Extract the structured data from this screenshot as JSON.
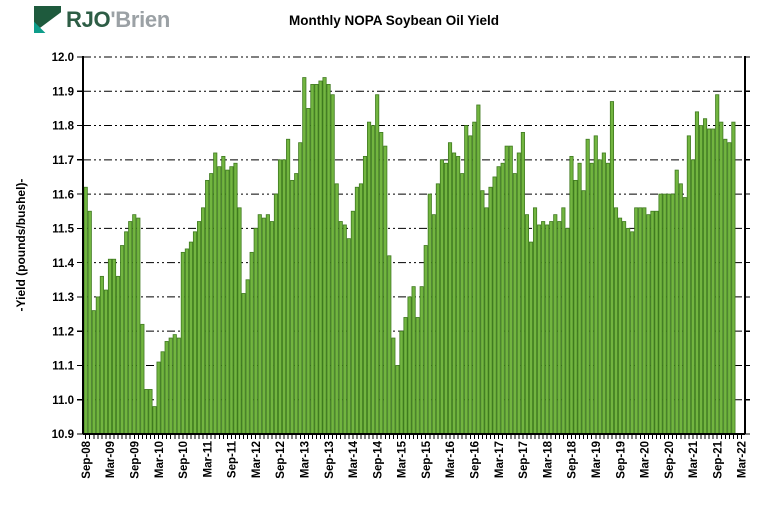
{
  "logo": {
    "text_primary": "RJO",
    "text_secondary": "'Brien",
    "mark_colors": {
      "green": "#1e5a3d",
      "teal": "#0e9d8a"
    }
  },
  "title": "Monthly NOPA Soybean Oil Yield",
  "chart_data": {
    "type": "bar",
    "title": "Monthly NOPA Soybean Oil Yield",
    "xlabel": "",
    "ylabel": "-Yield (pounds/bushel)-",
    "ylim": [
      10.9,
      12.0
    ],
    "ytick_step": 0.1,
    "ytick_labels": [
      "10.9",
      "11.0",
      "11.1",
      "11.2",
      "11.3",
      "11.4",
      "11.5",
      "11.6",
      "11.7",
      "11.8",
      "11.9",
      "12.0"
    ],
    "xtick_every": 6,
    "grid": "horizontal-dash-dot",
    "legend_position": "none",
    "bar_fill": "#72b540",
    "bar_stroke": "#3f7a1f",
    "axis_color": "#000000",
    "categories": [
      "Sep-08",
      "Oct-08",
      "Nov-08",
      "Dec-08",
      "Jan-09",
      "Feb-09",
      "Mar-09",
      "Apr-09",
      "May-09",
      "Jun-09",
      "Jul-09",
      "Aug-09",
      "Sep-09",
      "Oct-09",
      "Nov-09",
      "Dec-09",
      "Jan-10",
      "Feb-10",
      "Mar-10",
      "Apr-10",
      "May-10",
      "Jun-10",
      "Jul-10",
      "Aug-10",
      "Sep-10",
      "Oct-10",
      "Nov-10",
      "Dec-10",
      "Jan-11",
      "Feb-11",
      "Mar-11",
      "Apr-11",
      "May-11",
      "Jun-11",
      "Jul-11",
      "Aug-11",
      "Sep-11",
      "Oct-11",
      "Nov-11",
      "Dec-11",
      "Jan-12",
      "Feb-12",
      "Mar-12",
      "Apr-12",
      "May-12",
      "Jun-12",
      "Jul-12",
      "Aug-12",
      "Sep-12",
      "Oct-12",
      "Nov-12",
      "Dec-12",
      "Jan-13",
      "Feb-13",
      "Mar-13",
      "Apr-13",
      "May-13",
      "Jun-13",
      "Jul-13",
      "Aug-13",
      "Sep-13",
      "Oct-13",
      "Nov-13",
      "Dec-13",
      "Jan-14",
      "Feb-14",
      "Mar-14",
      "Apr-14",
      "May-14",
      "Jun-14",
      "Jul-14",
      "Aug-14",
      "Sep-14",
      "Oct-14",
      "Nov-14",
      "Dec-14",
      "Jan-15",
      "Feb-15",
      "Mar-15",
      "Apr-15",
      "May-15",
      "Jun-15",
      "Jul-15",
      "Aug-15",
      "Sep-15",
      "Oct-15",
      "Nov-15",
      "Dec-15",
      "Jan-16",
      "Feb-16",
      "Mar-16",
      "Apr-16",
      "May-16",
      "Jun-16",
      "Jul-16",
      "Aug-16",
      "Sep-16",
      "Oct-16",
      "Nov-16",
      "Dec-16",
      "Jan-17",
      "Feb-17",
      "Mar-17",
      "Apr-17",
      "May-17",
      "Jun-17",
      "Jul-17",
      "Aug-17",
      "Sep-17",
      "Oct-17",
      "Nov-17",
      "Dec-17",
      "Jan-18",
      "Feb-18",
      "Mar-18",
      "Apr-18",
      "May-18",
      "Jun-18",
      "Jul-18",
      "Aug-18",
      "Sep-18",
      "Oct-18",
      "Nov-18",
      "Dec-18",
      "Jan-19",
      "Feb-19",
      "Mar-19",
      "Apr-19",
      "May-19",
      "Jun-19",
      "Jul-19",
      "Aug-19",
      "Sep-19",
      "Oct-19",
      "Nov-19",
      "Dec-19",
      "Jan-20",
      "Feb-20",
      "Mar-20",
      "Apr-20",
      "May-20",
      "Jun-20",
      "Jul-20",
      "Aug-20",
      "Sep-20",
      "Oct-20",
      "Nov-20",
      "Dec-20",
      "Jan-21",
      "Feb-21",
      "Mar-21",
      "Apr-21",
      "May-21",
      "Jun-21",
      "Jul-21",
      "Aug-21",
      "Sep-21",
      "Oct-21",
      "Nov-21",
      "Dec-21",
      "Jan-22",
      "Feb-22",
      "Mar-22"
    ],
    "values": [
      11.62,
      11.55,
      11.26,
      11.3,
      11.36,
      11.32,
      11.41,
      11.41,
      11.36,
      11.45,
      11.49,
      11.52,
      11.54,
      11.53,
      11.22,
      11.03,
      11.03,
      10.98,
      11.11,
      11.14,
      11.17,
      11.18,
      11.19,
      11.18,
      11.43,
      11.44,
      11.46,
      11.49,
      11.52,
      11.56,
      11.64,
      11.66,
      11.72,
      11.68,
      11.71,
      11.67,
      11.68,
      11.69,
      11.56,
      11.31,
      11.35,
      11.43,
      11.5,
      11.54,
      11.53,
      11.54,
      11.52,
      11.6,
      11.7,
      11.7,
      11.76,
      11.64,
      11.66,
      11.75,
      11.94,
      11.85,
      11.92,
      11.92,
      11.93,
      11.94,
      11.92,
      11.89,
      11.63,
      11.52,
      11.51,
      11.47,
      11.55,
      11.62,
      11.63,
      11.71,
      11.81,
      11.8,
      11.89,
      11.78,
      11.74,
      11.42,
      11.18,
      11.1,
      11.2,
      11.24,
      11.3,
      11.33,
      11.24,
      11.33,
      11.45,
      11.6,
      11.54,
      11.63,
      11.7,
      11.69,
      11.75,
      11.72,
      11.71,
      11.66,
      11.8,
      11.77,
      11.81,
      11.86,
      11.61,
      11.56,
      11.62,
      11.65,
      11.68,
      11.69,
      11.74,
      11.74,
      11.66,
      11.72,
      11.78,
      11.54,
      11.46,
      11.56,
      11.51,
      11.52,
      11.51,
      11.52,
      11.54,
      11.52,
      11.56,
      11.5,
      11.71,
      11.64,
      11.69,
      11.61,
      11.76,
      11.69,
      11.77,
      11.7,
      11.72,
      11.69,
      11.87,
      11.56,
      11.53,
      11.52,
      11.5,
      11.49,
      11.56,
      11.56,
      11.56,
      11.54,
      11.55,
      11.55,
      11.6,
      11.6,
      11.6,
      11.6,
      11.67,
      11.63,
      11.59,
      11.77,
      11.7,
      11.84,
      11.8,
      11.82,
      11.79,
      11.79,
      11.89,
      11.81,
      11.76,
      11.75,
      11.81,
      null,
      null
    ]
  }
}
